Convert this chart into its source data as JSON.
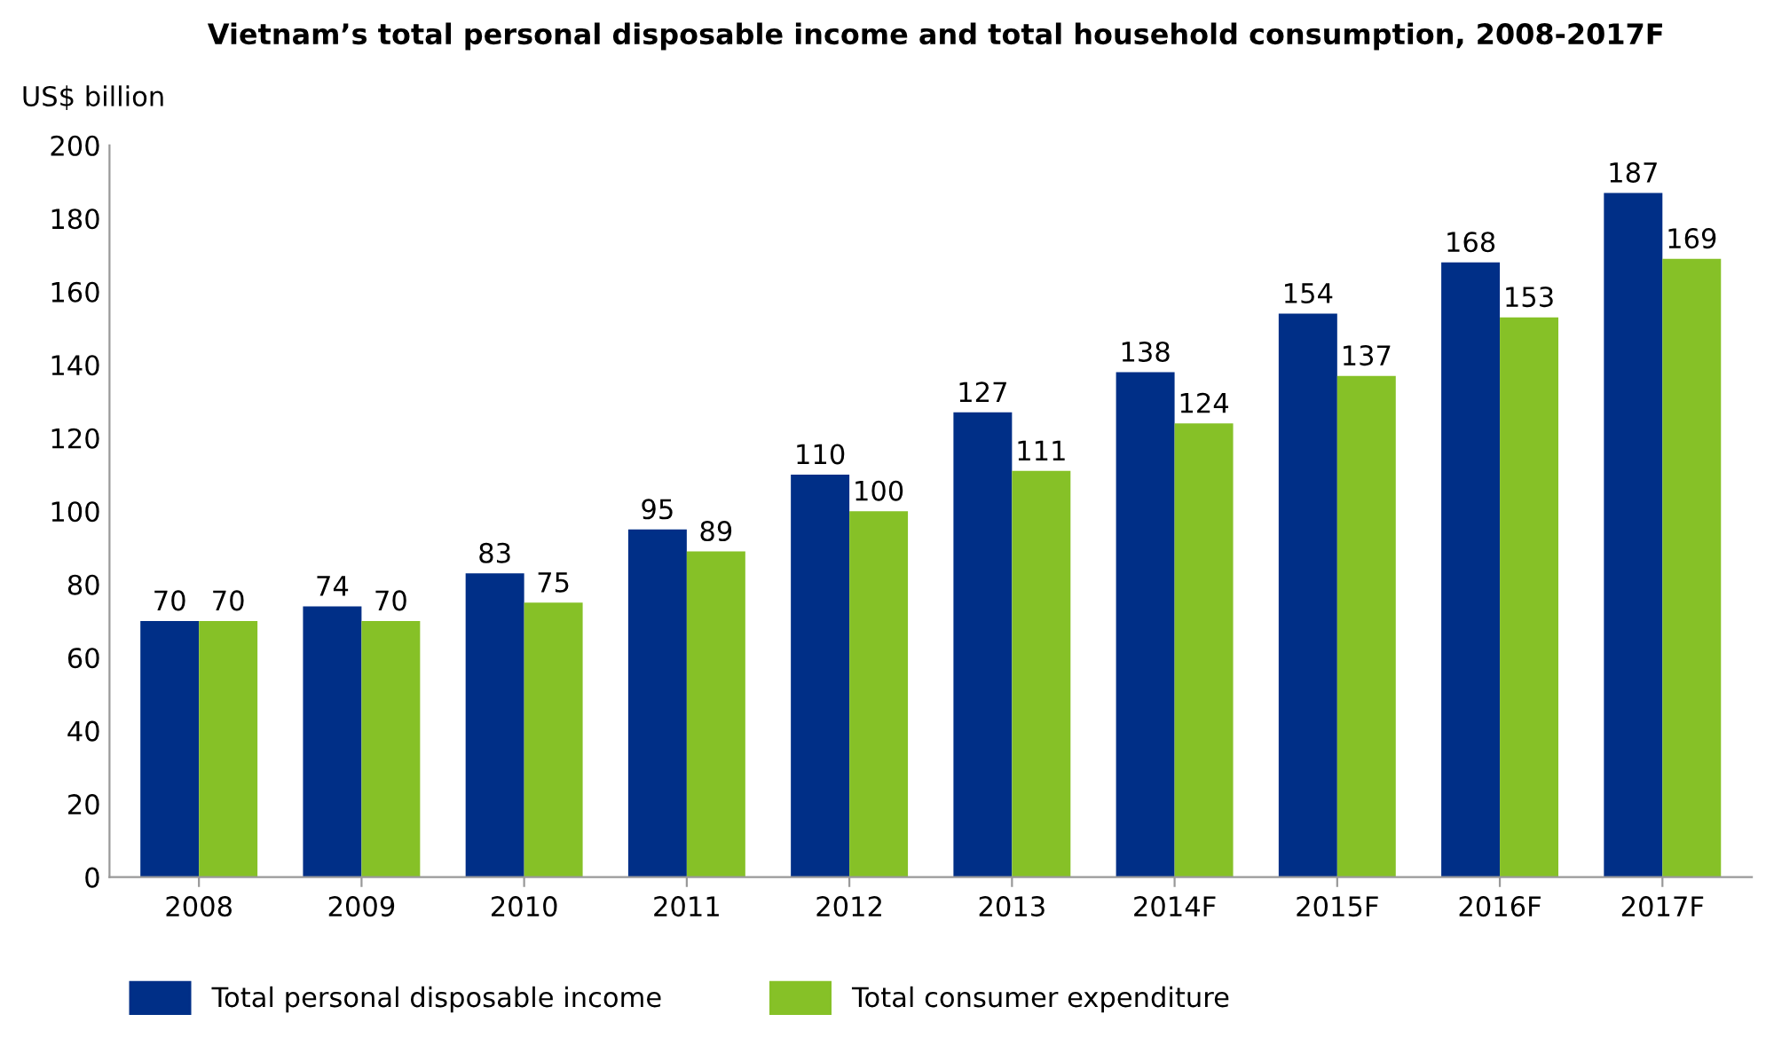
{
  "chart_data": {
    "type": "bar",
    "title": "Vietnam’s total personal disposable income and total household consumption, 2008-2017F",
    "ylabel": "US$ billion",
    "categories": [
      "2008",
      "2009",
      "2010",
      "2011",
      "2012",
      "2013",
      "2014F",
      "2015F",
      "2016F",
      "2017F"
    ],
    "series": [
      {
        "name": "Total personal disposable income",
        "color": "#002f87",
        "values": [
          70,
          74,
          83,
          95,
          110,
          127,
          138,
          154,
          168,
          187
        ]
      },
      {
        "name": "Total consumer expenditure",
        "color": "#86c127",
        "values": [
          70,
          70,
          75,
          89,
          100,
          111,
          124,
          137,
          153,
          169
        ]
      }
    ],
    "ylim": [
      0,
      200
    ],
    "yticks": [
      0,
      20,
      40,
      60,
      80,
      100,
      120,
      140,
      160,
      180,
      200
    ],
    "data_labels": true,
    "legend": "bottom left",
    "grid": false
  }
}
